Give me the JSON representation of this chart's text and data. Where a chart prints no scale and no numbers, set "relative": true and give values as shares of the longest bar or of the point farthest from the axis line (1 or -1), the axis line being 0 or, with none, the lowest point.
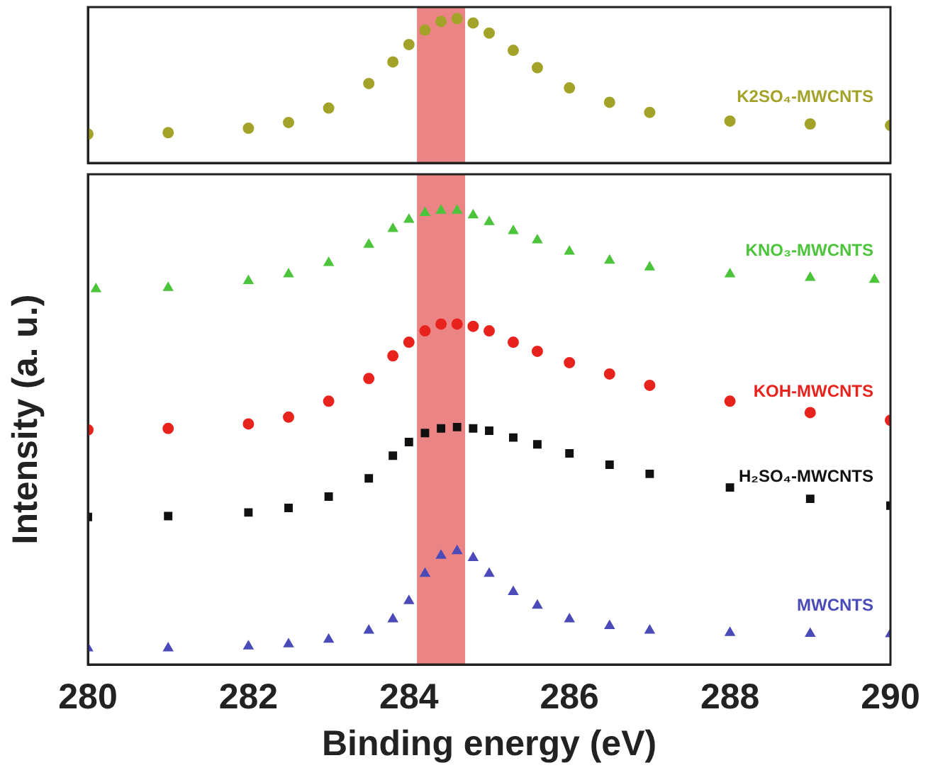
{
  "chart_data": [
    {
      "type": "scatter",
      "relative": true,
      "xlim": [
        280,
        290
      ],
      "tick_labels": false,
      "grid": false,
      "legend": false,
      "bands": [
        {
          "axis": "x",
          "from": 284.1,
          "to": 284.7,
          "color": "#e87070"
        }
      ],
      "series": [
        {
          "name": "K2SO₄-MWCNTS",
          "color": "#a3a32a",
          "marker": "circle",
          "x": [
            280,
            281,
            282,
            282.5,
            283,
            283.5,
            283.8,
            284,
            284.2,
            284.4,
            284.6,
            284.8,
            285,
            285.3,
            285.6,
            286,
            286.5,
            287,
            288,
            289,
            290
          ],
          "values": [
            0.2,
            0.21,
            0.24,
            0.28,
            0.38,
            0.55,
            0.7,
            0.82,
            0.92,
            0.98,
            1.0,
            0.97,
            0.9,
            0.78,
            0.66,
            0.52,
            0.42,
            0.35,
            0.29,
            0.27,
            0.26
          ]
        }
      ]
    },
    {
      "type": "scatter",
      "relative": true,
      "xlim": [
        280,
        290
      ],
      "xticks": [
        280,
        282,
        284,
        286,
        288,
        290
      ],
      "xlabel": "Binding energy (eV)",
      "ylabel": "Intensity (a. u.)",
      "tick_labels": "x",
      "grid": false,
      "legend": false,
      "bands": [
        {
          "axis": "x",
          "from": 284.1,
          "to": 284.7,
          "color": "#e87070"
        }
      ],
      "series": [
        {
          "name": "KNO₃-MWCNTS",
          "color": "#4cc43c",
          "marker": "triangle",
          "x": [
            280.1,
            281,
            282,
            282.5,
            283,
            283.5,
            283.8,
            284,
            284.2,
            284.4,
            284.6,
            284.8,
            285,
            285.3,
            285.6,
            286,
            286.5,
            287,
            288,
            289,
            289.8
          ],
          "values": [
            0.827,
            0.83,
            0.845,
            0.86,
            0.885,
            0.925,
            0.96,
            0.98,
            0.995,
            1.0,
            1.0,
            0.99,
            0.975,
            0.955,
            0.935,
            0.91,
            0.89,
            0.875,
            0.86,
            0.852,
            0.848
          ]
        },
        {
          "name": "KOH-MWCNTS",
          "color": "#e8231e",
          "marker": "circle",
          "x": [
            280,
            281,
            282,
            282.5,
            283,
            283.5,
            283.8,
            284,
            284.2,
            284.4,
            284.6,
            284.8,
            285,
            285.3,
            285.6,
            286,
            286.5,
            287,
            288,
            289,
            290
          ],
          "values": [
            0.517,
            0.52,
            0.53,
            0.545,
            0.58,
            0.63,
            0.68,
            0.71,
            0.735,
            0.75,
            0.75,
            0.745,
            0.735,
            0.71,
            0.69,
            0.665,
            0.64,
            0.615,
            0.58,
            0.555,
            0.538
          ]
        },
        {
          "name": "H₂SO₄-MWCNTS",
          "color": "#111111",
          "marker": "square",
          "x": [
            280,
            281,
            282,
            282.5,
            283,
            283.5,
            283.8,
            284,
            284.2,
            284.4,
            284.6,
            284.8,
            285,
            285.3,
            285.6,
            286,
            286.5,
            287,
            288,
            289,
            290
          ],
          "values": [
            0.325,
            0.327,
            0.335,
            0.345,
            0.37,
            0.41,
            0.46,
            0.49,
            0.51,
            0.52,
            0.523,
            0.52,
            0.515,
            0.5,
            0.485,
            0.465,
            0.44,
            0.42,
            0.39,
            0.365,
            0.35
          ]
        },
        {
          "name": "MWCNTS",
          "color": "#4a4ab8",
          "marker": "triangle",
          "x": [
            280,
            281,
            282,
            282.5,
            283,
            283.5,
            283.8,
            284,
            284.2,
            284.4,
            284.6,
            284.8,
            285,
            285.3,
            285.6,
            286,
            286.5,
            287,
            288,
            289,
            290
          ],
          "values": [
            0.036,
            0.036,
            0.04,
            0.045,
            0.055,
            0.075,
            0.1,
            0.14,
            0.2,
            0.24,
            0.25,
            0.235,
            0.2,
            0.16,
            0.13,
            0.1,
            0.085,
            0.075,
            0.07,
            0.068,
            0.067
          ]
        }
      ]
    }
  ]
}
